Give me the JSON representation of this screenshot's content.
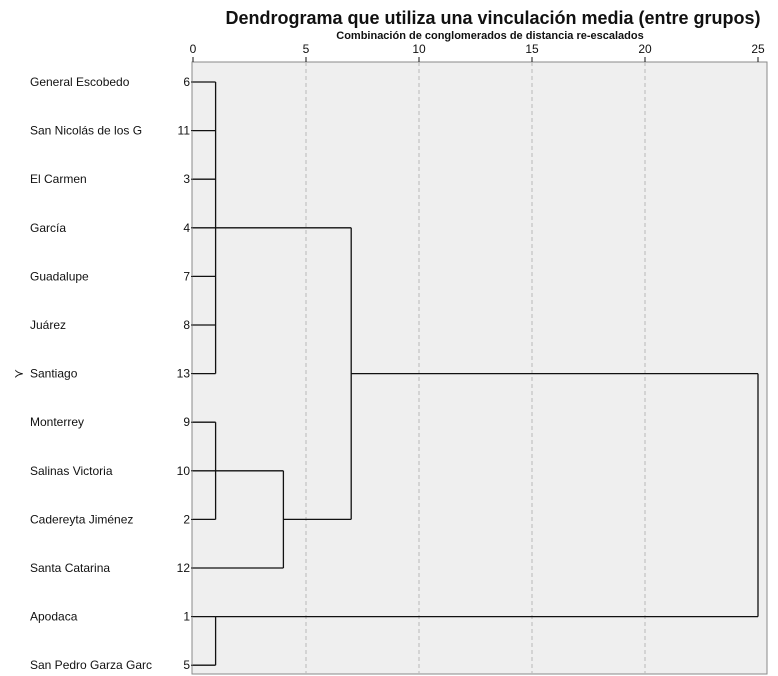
{
  "chart_data": {
    "type": "dendrogram",
    "title": "Dendrograma que utiliza una vinculación media (entre grupos)",
    "subtitle": "Combinación de conglomerados de distancia re-escalados",
    "x_ticks": [
      0,
      5,
      10,
      15,
      20,
      25
    ],
    "xlim": [
      0,
      25
    ],
    "grid": "vertical dashed",
    "rows": [
      {
        "label": "General Escobedo",
        "case": "6"
      },
      {
        "label": "San Nicolás de los G",
        "case": "11"
      },
      {
        "label": "El Carmen",
        "case": "3"
      },
      {
        "label": "García",
        "case": "4"
      },
      {
        "label": "Guadalupe",
        "case": "7"
      },
      {
        "label": "Juárez",
        "case": "8"
      },
      {
        "label": "Santiago",
        "case": "13"
      },
      {
        "label": "Monterrey",
        "case": "9"
      },
      {
        "label": "Salinas Victoria",
        "case": "10"
      },
      {
        "label": "Cadereyta Jiménez",
        "case": "2"
      },
      {
        "label": "Santa Catarina",
        "case": "12"
      },
      {
        "label": "Apodaca",
        "case": "1"
      },
      {
        "label": "San Pedro Garza Garc",
        "case": "5"
      }
    ],
    "marker": {
      "symbol": "≻",
      "row": 6
    },
    "merges": [
      {
        "rows": [
          0,
          1,
          2,
          3,
          4,
          5,
          6
        ],
        "distance": 1.0
      },
      {
        "rows": [
          7,
          8,
          9
        ],
        "distance": 1.0
      },
      {
        "rows": [
          11,
          12
        ],
        "distance": 1.0
      },
      {
        "left": "r7-9",
        "right": "r10",
        "distance": 4.0
      },
      {
        "left": "r0-6",
        "right": "r7-10",
        "distance": 7.0
      },
      {
        "left": "r0-10",
        "right": "r11-12",
        "distance": 25.0
      }
    ]
  }
}
